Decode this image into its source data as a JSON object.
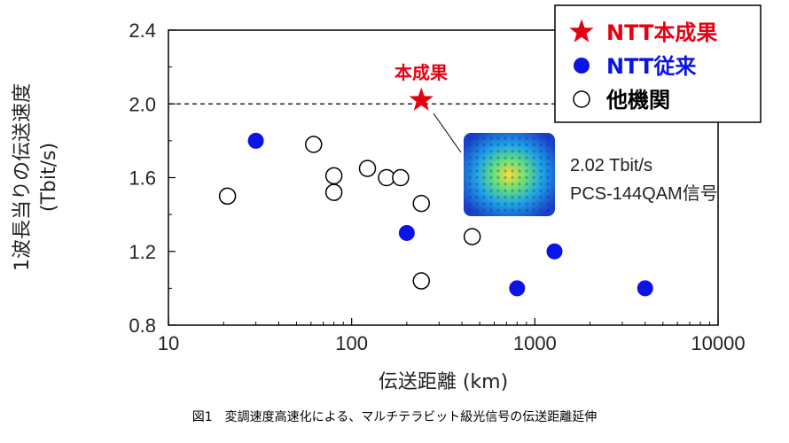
{
  "chart_data": {
    "type": "scatter",
    "xscale": "log",
    "xlim": [
      10,
      10000
    ],
    "ylim": [
      0.8,
      2.4
    ],
    "xticks": [
      "10",
      "100",
      "1000",
      "10000"
    ],
    "yticks": [
      "0.8",
      "1.2",
      "1.6",
      "2.0",
      "2.4"
    ],
    "xlabel": "伝送距離 (km)",
    "ylabel_line1": "1波長当りの伝送速度",
    "ylabel_line2": "(Tbit/s)",
    "reference_line_y": 2.0,
    "legend": {
      "position": "top-right",
      "items": [
        {
          "label": "NTT本成果",
          "marker": "star",
          "color": "#e60012"
        },
        {
          "label": "NTT従来",
          "marker": "filled-circle",
          "color": "#0a14e6"
        },
        {
          "label": "他機関",
          "marker": "open-circle",
          "color": "#000000"
        }
      ]
    },
    "series": [
      {
        "name": "NTT本成果",
        "marker": "star",
        "color": "#e60012",
        "points": [
          {
            "x": 240,
            "y": 2.02
          }
        ]
      },
      {
        "name": "NTT従来",
        "marker": "filled-circle",
        "color": "#0a14e6",
        "points": [
          {
            "x": 30,
            "y": 1.8
          },
          {
            "x": 200,
            "y": 1.3
          },
          {
            "x": 800,
            "y": 1.0
          },
          {
            "x": 1280,
            "y": 1.2
          },
          {
            "x": 4000,
            "y": 1.0
          }
        ]
      },
      {
        "name": "他機関",
        "marker": "open-circle",
        "color": "#000000",
        "points": [
          {
            "x": 21,
            "y": 1.5
          },
          {
            "x": 62,
            "y": 1.78
          },
          {
            "x": 80,
            "y": 1.61
          },
          {
            "x": 80,
            "y": 1.52
          },
          {
            "x": 122,
            "y": 1.65
          },
          {
            "x": 155,
            "y": 1.6
          },
          {
            "x": 185,
            "y": 1.6
          },
          {
            "x": 240,
            "y": 1.46
          },
          {
            "x": 240,
            "y": 1.04
          },
          {
            "x": 455,
            "y": 1.28
          }
        ]
      }
    ],
    "annotations": {
      "star_label": "本成果",
      "inset_line1": "2.02 Tbit/s",
      "inset_line2": "PCS-144QAM信号"
    }
  },
  "caption": "図1　変調速度高速化による、マルチテラビット級光信号の伝送距離延伸"
}
